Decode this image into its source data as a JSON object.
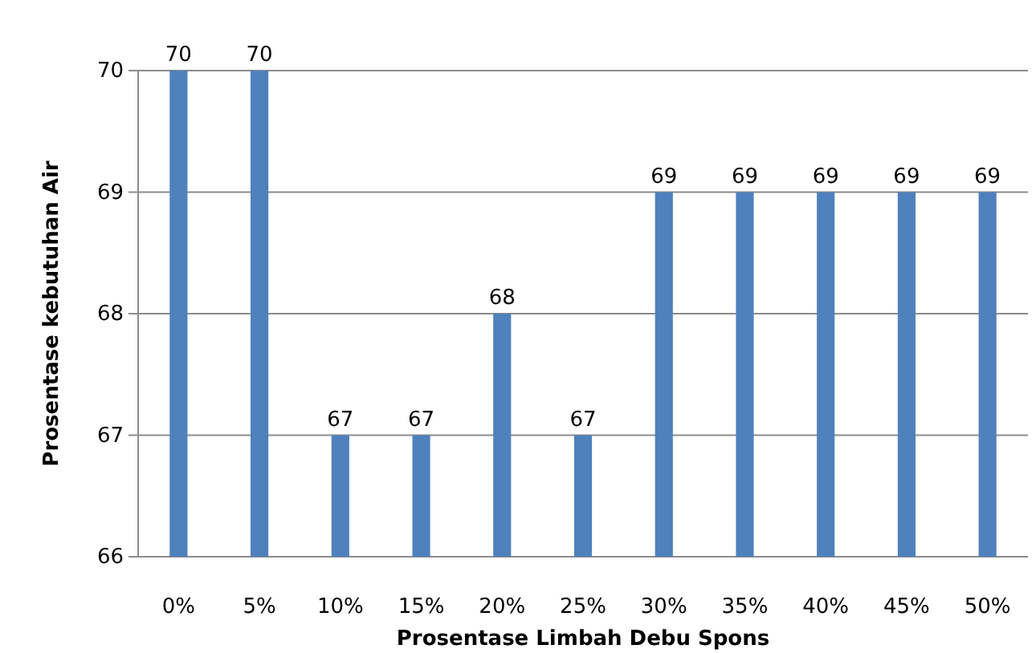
{
  "chart_data": {
    "type": "bar",
    "xlabel": "Prosentase Limbah Debu Spons",
    "ylabel": "Prosentase kebutuhan Air",
    "categories": [
      "0%",
      "5%",
      "10%",
      "15%",
      "20%",
      "25%",
      "30%",
      "35%",
      "40%",
      "45%",
      "50%"
    ],
    "values": [
      70,
      70,
      67,
      67,
      68,
      67,
      69,
      69,
      69,
      69,
      69
    ],
    "color": "#4f81bd",
    "ylim": [
      66,
      70
    ],
    "yticks": [
      66,
      67,
      68,
      69,
      70
    ],
    "grid": "y",
    "data_labels": true
  }
}
